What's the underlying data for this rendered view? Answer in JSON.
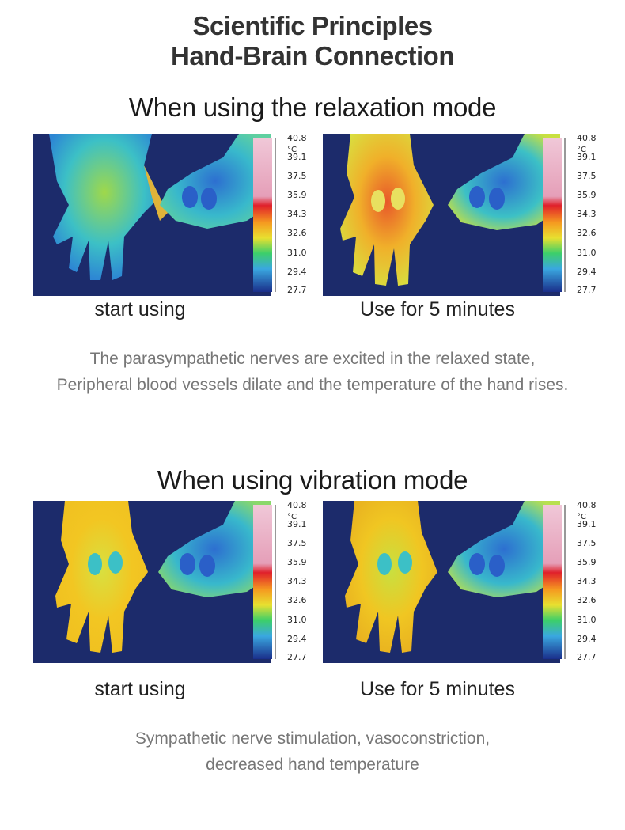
{
  "header": {
    "title_line1": "Scientific Principles",
    "title_line2": "Hand-Brain Connection"
  },
  "colors": {
    "background": "#1c2b6b",
    "cold": "#2f8ad6",
    "cool": "#39c0c8",
    "warm": "#d9e83a",
    "hot": "#f5c81a",
    "very_hot": "#d9432a"
  },
  "scale": {
    "unit": "°C",
    "labels": [
      "40.8",
      "39.1",
      "37.5",
      "35.9",
      "34.3",
      "32.6",
      "31.0",
      "29.4",
      "27.7"
    ]
  },
  "relaxation": {
    "heading": "When using the relaxation mode",
    "caption_before": "start using",
    "caption_after": "Use for 5 minutes",
    "description_line1": "The parasympathetic nerves are excited in the relaxed state,",
    "description_line2": "Peripheral blood vessels dilate and the temperature of the hand rises."
  },
  "vibration": {
    "heading": "When using vibration mode",
    "caption_before": "start using",
    "caption_after": "Use for 5 minutes",
    "description_line1": "Sympathetic nerve stimulation, vasoconstriction,",
    "description_line2": "decreased hand temperature"
  }
}
